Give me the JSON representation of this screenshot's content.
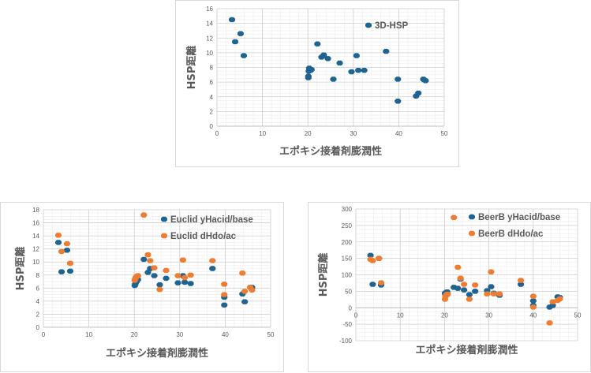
{
  "colors": {
    "blue": "#1f6391",
    "orange": "#ee7d31"
  },
  "chart_data": [
    {
      "type": "scatter",
      "title": "",
      "xlabel": "エポキシ接着剤膨潤性",
      "ylabel": "HSP距離",
      "xlim": [
        0,
        50
      ],
      "ylim": [
        0,
        16
      ],
      "xticks": [
        0,
        10,
        20,
        30,
        40,
        50
      ],
      "yticks": [
        0,
        2,
        4,
        6,
        8,
        10,
        12,
        14,
        16
      ],
      "grid": true,
      "legend": "top-right",
      "series": [
        {
          "name": "3D-HSP",
          "color": "#1f6391",
          "points": [
            [
              3.3,
              14.5
            ],
            [
              4,
              11.5
            ],
            [
              5.2,
              12.6
            ],
            [
              5.9,
              9.6
            ],
            [
              20.1,
              6.6
            ],
            [
              20.1,
              6.8
            ],
            [
              20.2,
              7.5
            ],
            [
              20.3,
              7.9
            ],
            [
              20.6,
              7.6
            ],
            [
              20.8,
              7.7
            ],
            [
              22.1,
              11.2
            ],
            [
              23,
              9.4
            ],
            [
              23.5,
              9.7
            ],
            [
              24.4,
              9.2
            ],
            [
              25.6,
              6.4
            ],
            [
              27,
              8.6
            ],
            [
              29.6,
              7.4
            ],
            [
              30.7,
              9.6
            ],
            [
              31.1,
              7.6
            ],
            [
              32.4,
              7.6
            ],
            [
              37.2,
              10.2
            ],
            [
              39.8,
              6.4
            ],
            [
              39.8,
              3.4
            ],
            [
              43.8,
              4.1
            ],
            [
              44.3,
              4.5
            ],
            [
              45.4,
              6.4
            ],
            [
              45.6,
              6.3
            ],
            [
              45.9,
              6.2
            ]
          ]
        }
      ]
    },
    {
      "type": "scatter",
      "title": "",
      "xlabel": "エポキシ接着剤膨潤性",
      "ylabel": "HSP距離",
      "xlim": [
        0,
        50
      ],
      "ylim": [
        0,
        18
      ],
      "xticks": [
        0,
        10,
        20,
        30,
        40,
        50
      ],
      "yticks": [
        0,
        2,
        4,
        6,
        8,
        10,
        12,
        14,
        16,
        18
      ],
      "grid": true,
      "legend": "top-right",
      "series": [
        {
          "name": "Euclid yHacid/base",
          "color": "#1f6391",
          "points": [
            [
              3.3,
              13
            ],
            [
              4,
              8.5
            ],
            [
              5.2,
              11.8
            ],
            [
              5.9,
              8.6
            ],
            [
              20.1,
              6.4
            ],
            [
              20.2,
              6.6
            ],
            [
              20.3,
              6.8
            ],
            [
              20.5,
              7
            ],
            [
              20.8,
              7.3
            ],
            [
              22.1,
              10.4
            ],
            [
              23,
              8.4
            ],
            [
              23.5,
              9
            ],
            [
              24.4,
              7.9
            ],
            [
              25.6,
              6.5
            ],
            [
              27,
              7.5
            ],
            [
              29.6,
              6.8
            ],
            [
              30.7,
              7.9
            ],
            [
              31.1,
              6.9
            ],
            [
              32.4,
              6.7
            ],
            [
              37.2,
              9
            ],
            [
              39.8,
              4.6
            ],
            [
              39.8,
              3.4
            ],
            [
              43.8,
              5.1
            ],
            [
              44.3,
              3.9
            ],
            [
              45.5,
              6.1
            ],
            [
              45.9,
              6.1
            ]
          ]
        },
        {
          "name": "Euclid dHdo/ac",
          "color": "#ee7d31",
          "points": [
            [
              3.3,
              14.1
            ],
            [
              4,
              11.6
            ],
            [
              5.2,
              12.8
            ],
            [
              5.9,
              9.8
            ],
            [
              20.1,
              7.2
            ],
            [
              20.2,
              7.4
            ],
            [
              20.3,
              7.6
            ],
            [
              20.5,
              7.8
            ],
            [
              20.8,
              7.9
            ],
            [
              22.1,
              17.2
            ],
            [
              23,
              11.1
            ],
            [
              23.5,
              10.2
            ],
            [
              24.4,
              9.1
            ],
            [
              25.6,
              5.8
            ],
            [
              27,
              8.7
            ],
            [
              29.6,
              7.9
            ],
            [
              30.7,
              10.3
            ],
            [
              31.1,
              7.6
            ],
            [
              32.4,
              8
            ],
            [
              37.2,
              10.2
            ],
            [
              39.8,
              6.6
            ],
            [
              39.8,
              5
            ],
            [
              43.8,
              8.3
            ],
            [
              44.3,
              5.5
            ],
            [
              45.5,
              6.1
            ],
            [
              45.9,
              5.7
            ]
          ]
        }
      ]
    },
    {
      "type": "scatter",
      "title": "",
      "xlabel": "エポキシ接着剤膨潤性",
      "ylabel": "HSP距離",
      "xlim": [
        0,
        50
      ],
      "ylim": [
        -100,
        300
      ],
      "xticks": [
        0,
        10,
        20,
        30,
        40,
        50
      ],
      "yticks": [
        -100,
        -50,
        0,
        50,
        100,
        150,
        200,
        250,
        300
      ],
      "grid": true,
      "legend": "top-right",
      "series": [
        {
          "name": "BeerB yHacid/base",
          "color": "#1f6391",
          "points": [
            [
              3.3,
              159
            ],
            [
              3.8,
              71
            ],
            [
              5.2,
              150
            ],
            [
              5.7,
              69
            ],
            [
              20.1,
              44
            ],
            [
              20.2,
              40
            ],
            [
              20.4,
              47
            ],
            [
              20.6,
              48
            ],
            [
              22.1,
              62
            ],
            [
              23,
              59
            ],
            [
              23.6,
              87
            ],
            [
              24.4,
              54
            ],
            [
              25.6,
              40
            ],
            [
              26.9,
              50
            ],
            [
              29.6,
              52
            ],
            [
              30.5,
              64
            ],
            [
              31.1,
              44
            ],
            [
              32.4,
              38
            ],
            [
              37.2,
              71
            ],
            [
              40,
              21
            ],
            [
              40,
              7
            ],
            [
              43.7,
              2
            ],
            [
              44.4,
              7
            ],
            [
              45.5,
              33
            ],
            [
              46,
              31
            ]
          ]
        },
        {
          "name": "BeerB dHdo/ac",
          "color": "#ee7d31",
          "points": [
            [
              3.3,
              147
            ],
            [
              3.8,
              143
            ],
            [
              5.2,
              150
            ],
            [
              5.7,
              76
            ],
            [
              20.1,
              26
            ],
            [
              20.2,
              35
            ],
            [
              20.4,
              40
            ],
            [
              20.7,
              41
            ],
            [
              22.1,
              274
            ],
            [
              23,
              123
            ],
            [
              23.6,
              90
            ],
            [
              24.4,
              71
            ],
            [
              25.6,
              26
            ],
            [
              26.9,
              69
            ],
            [
              29.6,
              42
            ],
            [
              30.5,
              109
            ],
            [
              31.1,
              42
            ],
            [
              32.4,
              42
            ],
            [
              37.2,
              83
            ],
            [
              40,
              35
            ],
            [
              40,
              2
            ],
            [
              43.7,
              -46
            ],
            [
              44.4,
              18
            ],
            [
              45.5,
              22
            ],
            [
              46,
              27
            ]
          ]
        }
      ]
    }
  ]
}
